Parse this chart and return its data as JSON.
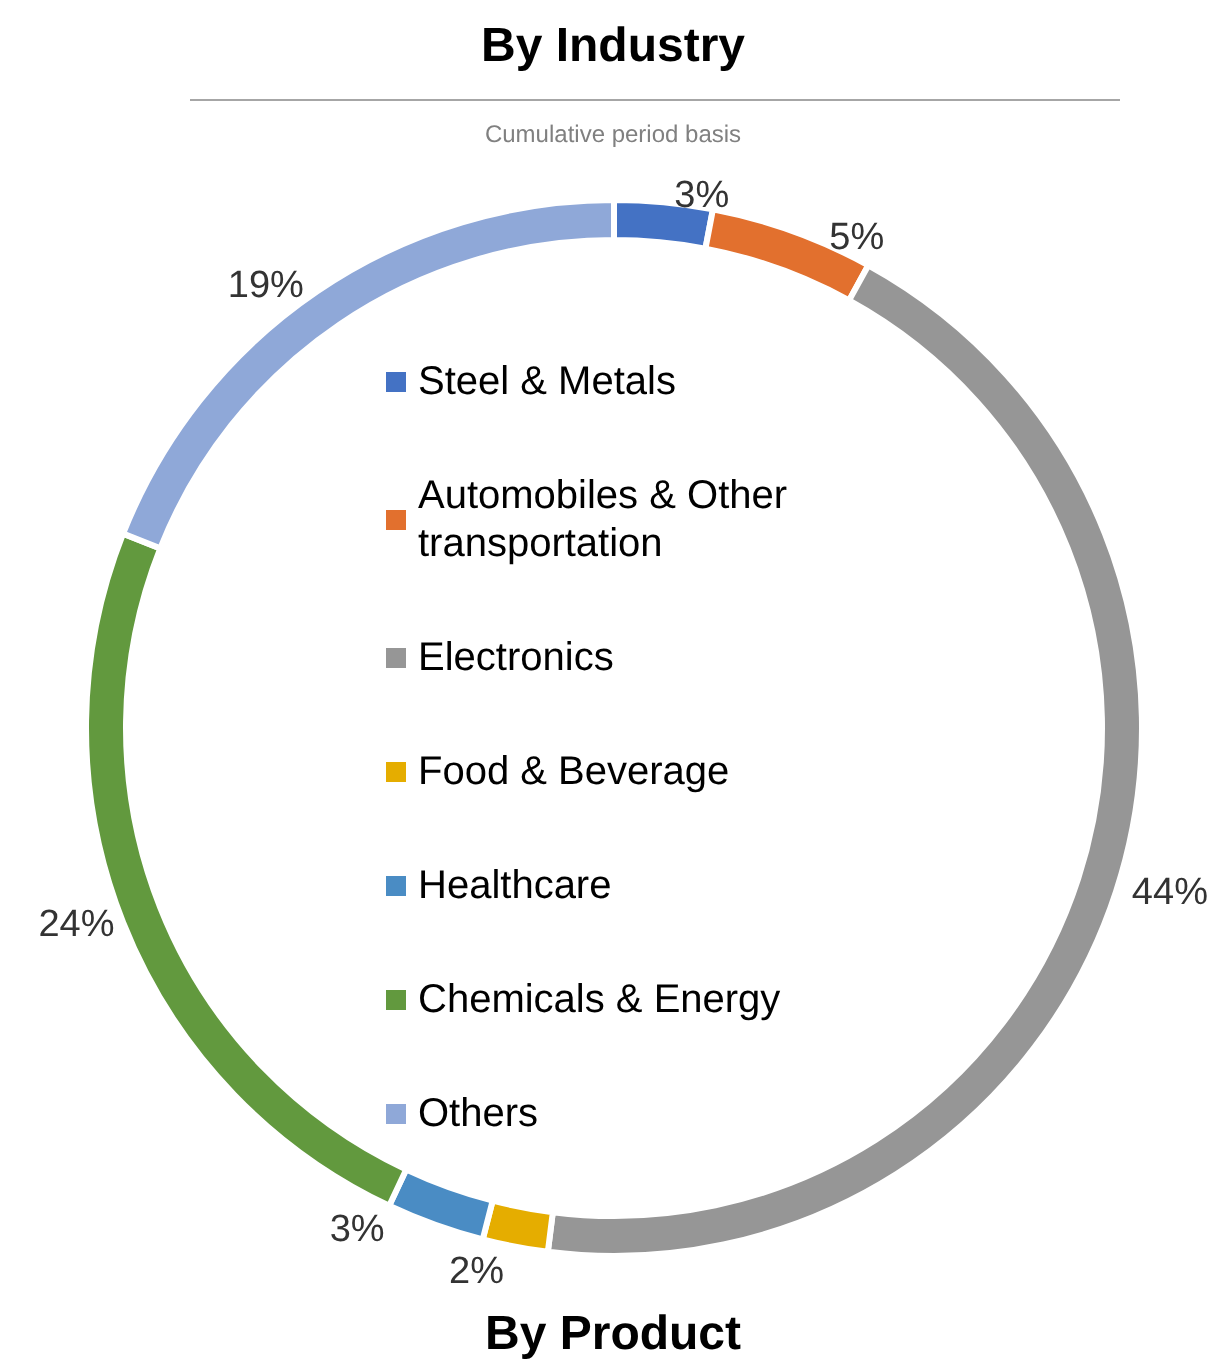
{
  "chart_data": {
    "type": "donut",
    "title": "By Industry",
    "subtitle": "Cumulative period basis",
    "categories": [
      "Steel & Metals",
      "Automobiles & Other transportation",
      "Electronics",
      "Food & Beverage",
      "Healthcare",
      "Chemicals & Energy",
      "Others"
    ],
    "values": [
      3,
      5,
      44,
      2,
      3,
      24,
      19
    ],
    "value_labels": [
      "3%",
      "5%",
      "44%",
      "2%",
      "3%",
      "24%",
      "19%"
    ],
    "colors": [
      "#4472c4",
      "#e2702e",
      "#969696",
      "#e5ad00",
      "#4a8cc4",
      "#62993e",
      "#8fa8d8"
    ],
    "legend": "center",
    "annotations": [
      "By Product"
    ]
  }
}
